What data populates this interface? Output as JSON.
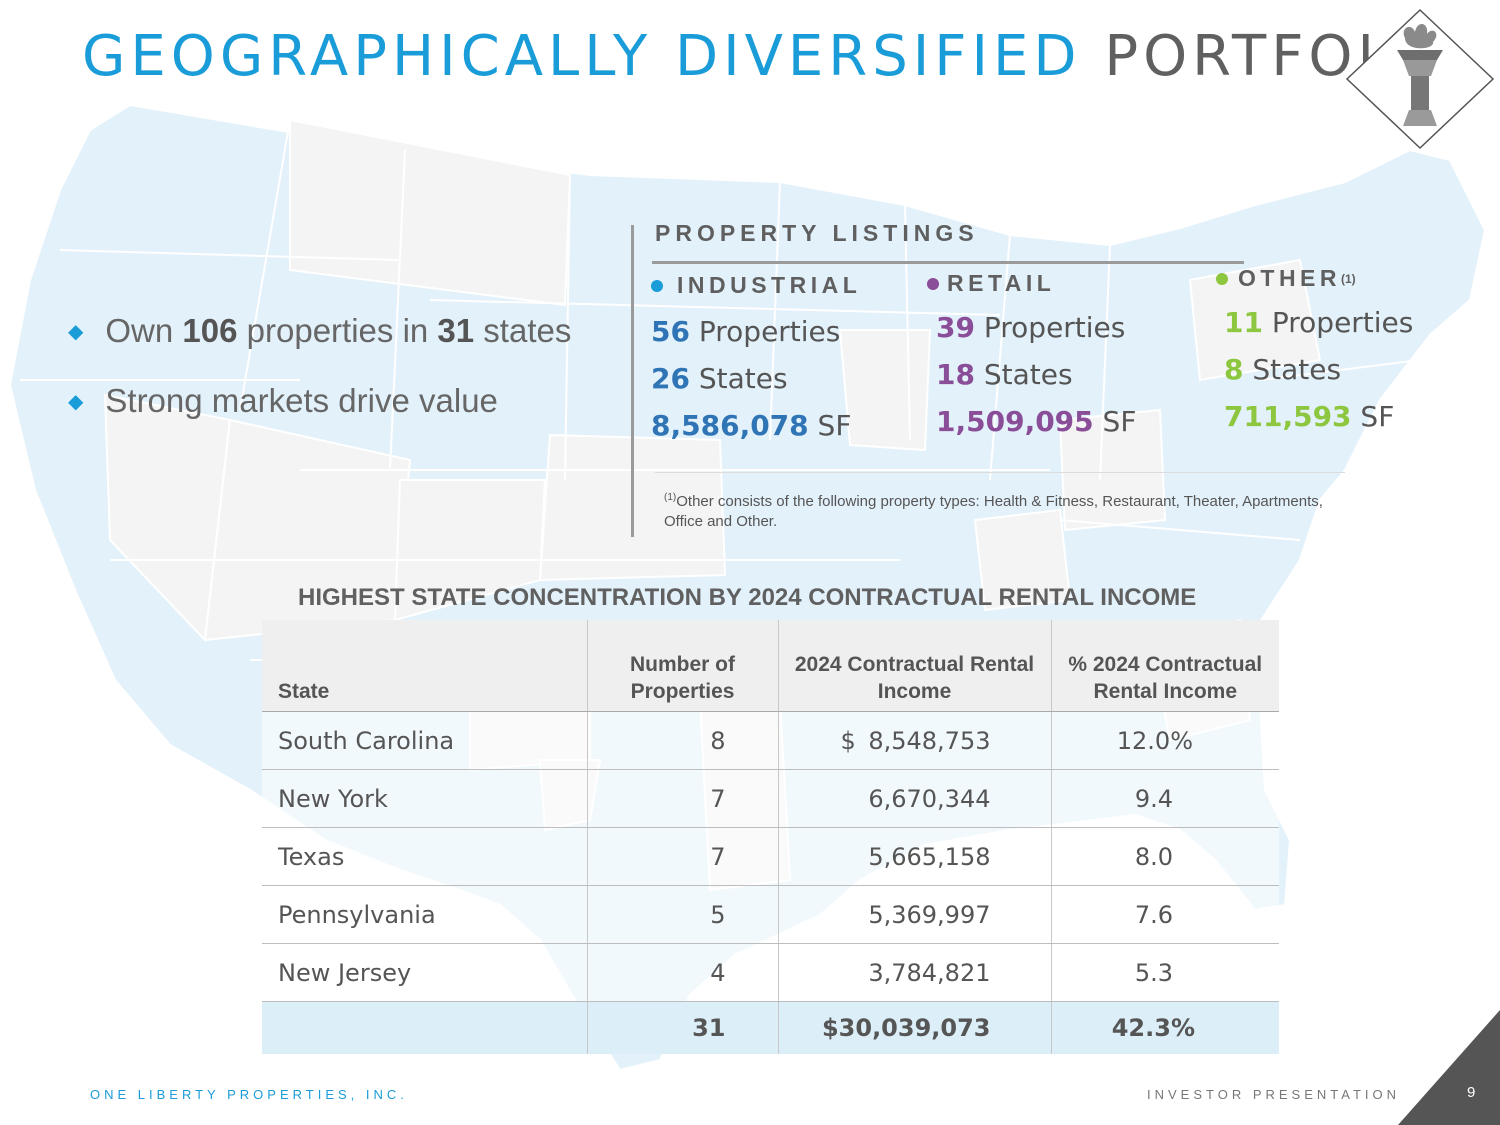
{
  "header": {
    "title_highlight": "GEOGRAPHICALLY DIVERSIFIED",
    "title_rest": "PORTFOLIO"
  },
  "bullets": [
    {
      "pre": "Own ",
      "b1": "106",
      "mid": " properties in ",
      "b2": "31",
      "post": " states"
    },
    {
      "text": "Strong markets drive value"
    }
  ],
  "listings": {
    "title": "PROPERTY LISTINGS",
    "industrial": {
      "label": "INDUSTRIAL",
      "properties": "56",
      "properties_label": " Properties",
      "states": "26",
      "states_label": " States",
      "sf": "8,586,078",
      "sf_label": " SF",
      "color": "#2f74b5"
    },
    "retail": {
      "label": "RETAIL",
      "properties": "39",
      "properties_label": " Properties",
      "states": "18",
      "states_label": " States",
      "sf": "1,509,095",
      "sf_label": " SF",
      "color": "#8a4d98"
    },
    "other": {
      "label": "OTHER",
      "sup": "(1)",
      "properties": "11",
      "properties_label": " Properties",
      "states": "8",
      "states_label": " States",
      "sf": "711,593",
      "sf_label": " SF",
      "color": "#8dc63f"
    },
    "footnote_mark": "(1)",
    "footnote": "Other consists of the following property types: Health & Fitness, Restaurant, Theater, Apartments, Office and Other."
  },
  "table": {
    "title": "HIGHEST STATE CONCENTRATION BY 2024 CONTRACTUAL RENTAL INCOME",
    "headers": [
      "State",
      "Number of Properties",
      "2024 Contractual Rental Income",
      "% 2024 Contractual Rental Income"
    ],
    "rows": [
      {
        "state": "South Carolina",
        "count": "8",
        "dollar": "$",
        "income": "8,548,753",
        "pct": "12.0%"
      },
      {
        "state": "New York",
        "count": "7",
        "dollar": "",
        "income": "6,670,344",
        "pct": "9.4"
      },
      {
        "state": "Texas",
        "count": "7",
        "dollar": "",
        "income": "5,665,158",
        "pct": "8.0"
      },
      {
        "state": "Pennsylvania",
        "count": "5",
        "dollar": "",
        "income": "5,369,997",
        "pct": "7.6"
      },
      {
        "state": "New Jersey",
        "count": "4",
        "dollar": "",
        "income": "3,784,821",
        "pct": "5.3"
      }
    ],
    "total": {
      "state": "",
      "count": "31",
      "income": "$30,039,073",
      "pct": "42.3%"
    }
  },
  "footer": {
    "company": "ONE LIBERTY PROPERTIES, INC.",
    "presentation": "INVESTOR PRESENTATION",
    "page": "9"
  },
  "colors": {
    "accent": "#1a9cd8",
    "industrial": "#2f74b5",
    "retail": "#8a4d98",
    "other": "#8dc63f"
  }
}
